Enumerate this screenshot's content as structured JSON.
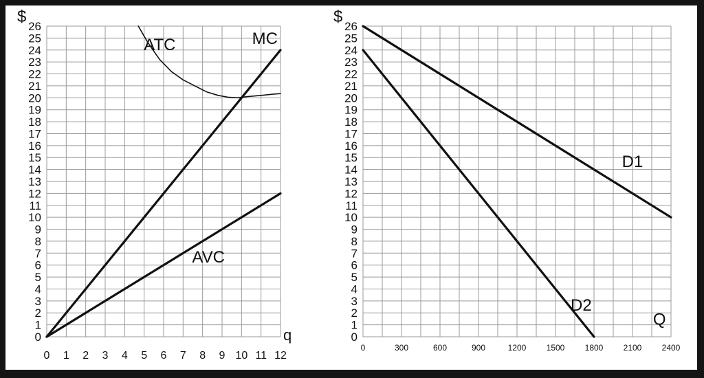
{
  "chart_data": [
    {
      "type": "line",
      "title": "",
      "ylabel": "$",
      "xlabel": "q",
      "xlim": [
        0,
        12
      ],
      "ylim": [
        0,
        26
      ],
      "x_ticks": [
        0,
        1,
        2,
        3,
        4,
        5,
        6,
        7,
        8,
        9,
        10,
        11,
        12
      ],
      "y_ticks": [
        0,
        1,
        2,
        3,
        4,
        5,
        6,
        7,
        8,
        9,
        10,
        11,
        12,
        13,
        14,
        15,
        16,
        17,
        18,
        19,
        20,
        21,
        22,
        23,
        24,
        25,
        26
      ],
      "grid": true,
      "series": [
        {
          "name": "MC",
          "style": "thick",
          "x": [
            0,
            12
          ],
          "y": [
            0,
            24
          ]
        },
        {
          "name": "AVC",
          "style": "thick",
          "x": [
            0,
            12
          ],
          "y": [
            0,
            12
          ]
        },
        {
          "name": "ATC",
          "style": "thin",
          "x": [
            4.7,
            5.2,
            5.8,
            6.4,
            7.0,
            7.6,
            8.2,
            8.8,
            9.3,
            9.8,
            10.3,
            11.0,
            11.6,
            12.0
          ],
          "y": [
            26.0,
            24.6,
            23.2,
            22.2,
            21.5,
            21.0,
            20.5,
            20.2,
            20.05,
            20.0,
            20.1,
            20.2,
            20.3,
            20.35
          ]
        }
      ],
      "annotations": [
        {
          "text": "ATC",
          "x": 5.8,
          "y": 24.0
        },
        {
          "text": "MC",
          "x": 11.2,
          "y": 24.5
        },
        {
          "text": "AVC",
          "x": 8.3,
          "y": 6.2
        }
      ]
    },
    {
      "type": "line",
      "title": "",
      "ylabel": "$",
      "xlabel": "Q",
      "xlim": [
        0,
        2400
      ],
      "ylim": [
        0,
        26
      ],
      "x_ticks": [
        0,
        300,
        600,
        900,
        1200,
        1500,
        1800,
        2100,
        2400
      ],
      "y_ticks": [
        0,
        1,
        2,
        3,
        4,
        5,
        6,
        7,
        8,
        9,
        10,
        11,
        12,
        13,
        14,
        15,
        16,
        17,
        18,
        19,
        20,
        21,
        22,
        23,
        24,
        25,
        26
      ],
      "grid": true,
      "series": [
        {
          "name": "D1",
          "style": "thick",
          "x": [
            0,
            2400
          ],
          "y": [
            26,
            10
          ]
        },
        {
          "name": "D2",
          "style": "thick",
          "x": [
            0,
            1800
          ],
          "y": [
            24,
            0
          ]
        }
      ],
      "annotations": [
        {
          "text": "D1",
          "x": 2100,
          "y": 14.2
        },
        {
          "text": "D2",
          "x": 1700,
          "y": 2.2
        },
        {
          "text": "Q",
          "x": 2310,
          "y": 1.0
        }
      ]
    }
  ]
}
